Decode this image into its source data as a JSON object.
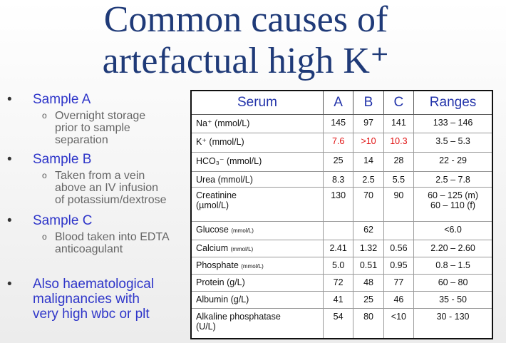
{
  "title": [
    "Common causes of",
    "artefactual high K⁺"
  ],
  "bullets": [
    {
      "text": "Sample A",
      "sub": [
        "Overnight storage",
        "prior to sample",
        "separation"
      ]
    },
    {
      "text": "Sample B",
      "sub": [
        "Taken from a vein",
        "above an IV infusion",
        "of potassium/dextrose"
      ]
    },
    {
      "text": "Sample C",
      "sub": [
        "Blood taken into EDTA",
        "anticoagulant"
      ]
    },
    {
      "text": [
        "Also haematological",
        "malignancies with",
        "very high wbc or plt"
      ]
    }
  ],
  "table": {
    "header": [
      "Serum",
      "A",
      "B",
      "C",
      "Ranges"
    ],
    "rows": [
      {
        "analyte": "Na⁺ (mmol/L)",
        "a": 145,
        "b": 97,
        "c": 141,
        "range": "133 – 146"
      },
      {
        "analyte": "K⁺ (mmol/L)",
        "a": 7.6,
        "b": ">10",
        "c": 10.3,
        "range": "3.5 – 5.3"
      },
      {
        "analyte": "HCO₃⁻ (mmol/L)",
        "a": 25,
        "b": 14,
        "c": 28,
        "range": "22 - 29"
      },
      {
        "analyte": "Urea (mmol/L)",
        "a": 8.3,
        "b": 2.5,
        "c": 5.5,
        "range": "2.5 – 7.8"
      },
      {
        "analyte": [
          "Creatinine",
          "(µmol/L)"
        ],
        "a": 130,
        "b": 70,
        "c": 90,
        "range": [
          "60 – 125 (m)",
          "60 – 110 (f)"
        ]
      },
      {
        "analyte": "Glucose",
        "unit": "(mmol/L)",
        "a": null,
        "b": 62,
        "c": null,
        "range": "<6.0"
      },
      {
        "analyte": "Calcium",
        "unit": "(mmol/L)",
        "a": 2.41,
        "b": 1.32,
        "c": 0.56,
        "range": "2.20 – 2.60"
      },
      {
        "analyte": "Phosphate",
        "unit": "(mmol/L)",
        "a": "5.0",
        "b": 0.51,
        "c": 0.95,
        "range": "0.8 – 1.5"
      },
      {
        "analyte": "Protein (g/L)",
        "a": 72,
        "b": 48,
        "c": 77,
        "range": "60 – 80"
      },
      {
        "analyte": "Albumin (g/L)",
        "a": 41,
        "b": 25,
        "c": 46,
        "range": "35 - 50"
      },
      {
        "analyte": [
          "Alkaline phosphatase",
          "(U/L)"
        ],
        "a": 54,
        "b": 80,
        "c": "<10",
        "range": "30 - 130"
      }
    ]
  }
}
